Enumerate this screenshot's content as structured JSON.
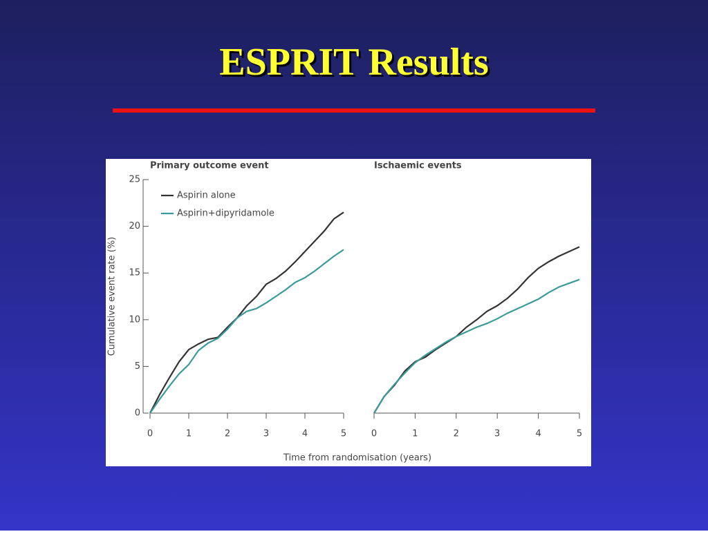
{
  "slide": {
    "title": "ESPRIT Results"
  },
  "chart_data": [
    {
      "type": "line",
      "title": "Primary outcome event",
      "xlabel": "Time from randomisation (years)",
      "ylabel": "Cumulative event rate (%)",
      "x": [
        0,
        0.25,
        0.5,
        0.75,
        1,
        1.25,
        1.5,
        1.75,
        2,
        2.25,
        2.5,
        2.75,
        3,
        3.25,
        3.5,
        3.75,
        4,
        4.25,
        4.5,
        4.75,
        5
      ],
      "series": [
        {
          "name": "Aspirin alone",
          "color": "#333333",
          "values": [
            0,
            2,
            3.8,
            5.5,
            6.8,
            7.4,
            7.9,
            8.1,
            9.2,
            10.2,
            11.5,
            12.5,
            13.8,
            14.4,
            15.2,
            16.2,
            17.3,
            18.4,
            19.5,
            20.8,
            21.5
          ]
        },
        {
          "name": "Aspirin+dipyridamole",
          "color": "#3a9a9a",
          "values": [
            0,
            1.5,
            2.9,
            4.2,
            5.2,
            6.7,
            7.5,
            8.0,
            9.0,
            10.2,
            10.9,
            11.2,
            11.8,
            12.5,
            13.2,
            14,
            14.5,
            15.2,
            16,
            16.8,
            17.5
          ]
        }
      ],
      "xlim": [
        0,
        5
      ],
      "xticks": [
        0,
        1,
        2,
        3,
        4,
        5
      ],
      "ylim": [
        0,
        25
      ],
      "yticks": [
        0,
        5,
        10,
        15,
        20,
        25
      ],
      "legend": "upper left"
    },
    {
      "type": "line",
      "title": "Ischaemic events",
      "x": [
        0,
        0.25,
        0.5,
        0.75,
        1,
        1.25,
        1.5,
        1.75,
        2,
        2.25,
        2.5,
        2.75,
        3,
        3.25,
        3.5,
        3.75,
        4,
        4.25,
        4.5,
        4.75,
        5
      ],
      "series": [
        {
          "color": "#333333",
          "values": [
            0,
            1.8,
            3,
            4.5,
            5.5,
            6,
            6.8,
            7.5,
            8.2,
            9.2,
            10,
            10.9,
            11.5,
            12.3,
            13.3,
            14.5,
            15.5,
            16.2,
            16.8,
            17.3,
            17.8
          ]
        },
        {
          "color": "#3a9a9a",
          "values": [
            0,
            1.8,
            3.1,
            4.3,
            5.4,
            6.2,
            6.9,
            7.6,
            8.2,
            8.7,
            9.2,
            9.6,
            10.1,
            10.7,
            11.2,
            11.7,
            12.2,
            12.9,
            13.5,
            13.9,
            14.3
          ]
        }
      ],
      "xlim": [
        0,
        5
      ],
      "xticks": [
        0,
        1,
        2,
        3,
        4,
        5
      ],
      "ylim": [
        0,
        25
      ]
    }
  ]
}
